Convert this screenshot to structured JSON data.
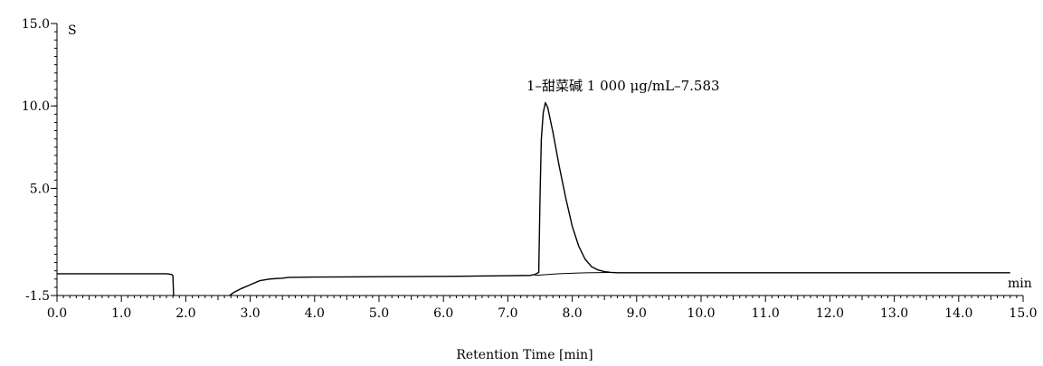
{
  "chart_data": {
    "type": "line",
    "xlabel": "Retention Time  [min]",
    "ylabel": "",
    "x_unit": "min",
    "y_unit": "S",
    "xlim": [
      0,
      15
    ],
    "ylim": [
      -1.5,
      15
    ],
    "x_ticks": [
      "0.0",
      "1.0",
      "2.0",
      "3.0",
      "4.0",
      "5.0",
      "6.0",
      "7.0",
      "8.0",
      "9.0",
      "10.0",
      "11.0",
      "12.0",
      "13.0",
      "14.0",
      "15.0"
    ],
    "y_ticks": [
      {
        "value": 15,
        "label": "15.0"
      },
      {
        "value": 10,
        "label": "10.0"
      },
      {
        "value": 5,
        "label": "5.0"
      },
      {
        "value": -1.5,
        "label": "-1.5"
      }
    ],
    "grid": false,
    "annotations": [
      {
        "text": "1–甜菜碱 1 000 μg/mL–7.583",
        "x": 7.583,
        "y": 10.6
      }
    ],
    "series": [
      {
        "points": [
          [
            0.0,
            -0.18
          ],
          [
            1.7,
            -0.18
          ],
          [
            1.78,
            -0.22
          ],
          [
            1.8,
            -0.3
          ],
          [
            1.81,
            -1.5
          ],
          [
            null,
            null
          ],
          [
            2.68,
            -1.5
          ],
          [
            2.75,
            -1.3
          ],
          [
            2.85,
            -1.1
          ],
          [
            3.0,
            -0.85
          ],
          [
            3.15,
            -0.6
          ],
          [
            3.3,
            -0.5
          ],
          [
            3.5,
            -0.45
          ],
          [
            3.6,
            -0.4
          ],
          [
            4.0,
            -0.38
          ],
          [
            5.0,
            -0.36
          ],
          [
            6.0,
            -0.34
          ],
          [
            7.0,
            -0.3
          ],
          [
            7.35,
            -0.28
          ],
          [
            7.42,
            -0.22
          ],
          [
            7.48,
            -0.1
          ],
          [
            7.5,
            4.5
          ],
          [
            7.52,
            8.0
          ],
          [
            7.55,
            9.6
          ],
          [
            7.583,
            10.2
          ],
          [
            7.62,
            9.9
          ],
          [
            7.7,
            8.4
          ],
          [
            7.8,
            6.3
          ],
          [
            7.9,
            4.4
          ],
          [
            8.0,
            2.7
          ],
          [
            8.1,
            1.5
          ],
          [
            8.2,
            0.7
          ],
          [
            8.3,
            0.25
          ],
          [
            8.4,
            0.05
          ],
          [
            8.5,
            -0.05
          ],
          [
            8.6,
            -0.1
          ],
          [
            8.7,
            -0.12
          ],
          [
            10.0,
            -0.12
          ],
          [
            12.0,
            -0.12
          ],
          [
            14.0,
            -0.12
          ],
          [
            14.8,
            -0.12
          ]
        ]
      },
      {
        "points": [
          [
            7.42,
            -0.28
          ],
          [
            7.8,
            -0.18
          ],
          [
            8.2,
            -0.12
          ],
          [
            8.6,
            -0.1
          ]
        ]
      }
    ]
  }
}
